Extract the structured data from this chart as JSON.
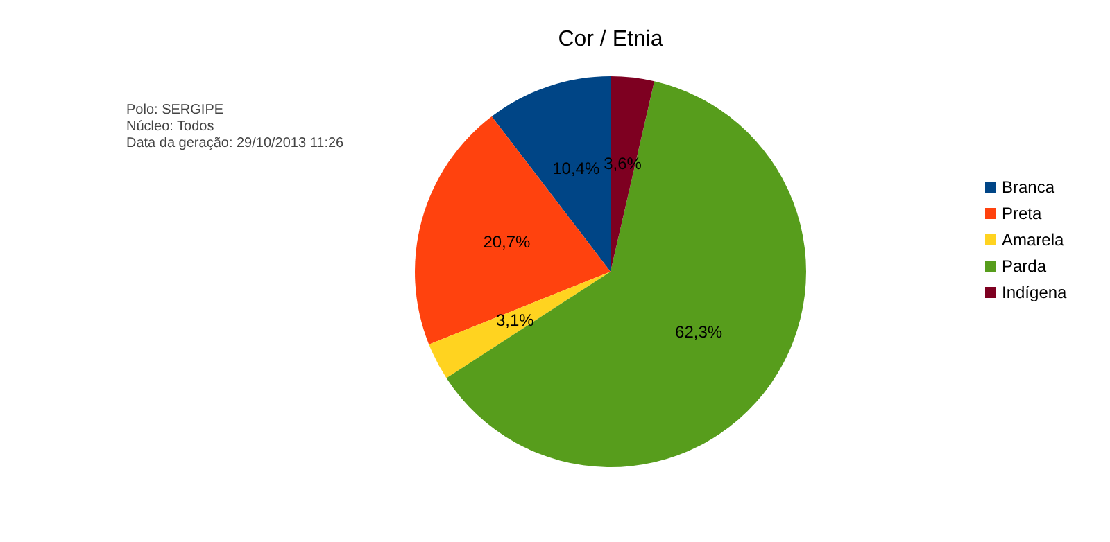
{
  "chart_data": {
    "type": "pie",
    "title": "Cor / Etnia",
    "categories": [
      "Branca",
      "Preta",
      "Amarela",
      "Parda",
      "Indígena"
    ],
    "values": [
      10.4,
      20.7,
      3.1,
      62.3,
      3.6
    ],
    "colors": [
      "#004586",
      "#ff420e",
      "#ffd320",
      "#579d1c",
      "#7e0021"
    ],
    "value_labels": [
      "10,4%",
      "20,7%",
      "3,1%",
      "62,3%",
      "3,6%"
    ],
    "legend": "right",
    "annotations": [
      "Polo: SERGIPE",
      "Núcleo: Todos",
      "Data da geração: 29/10/2013 11:26"
    ]
  }
}
